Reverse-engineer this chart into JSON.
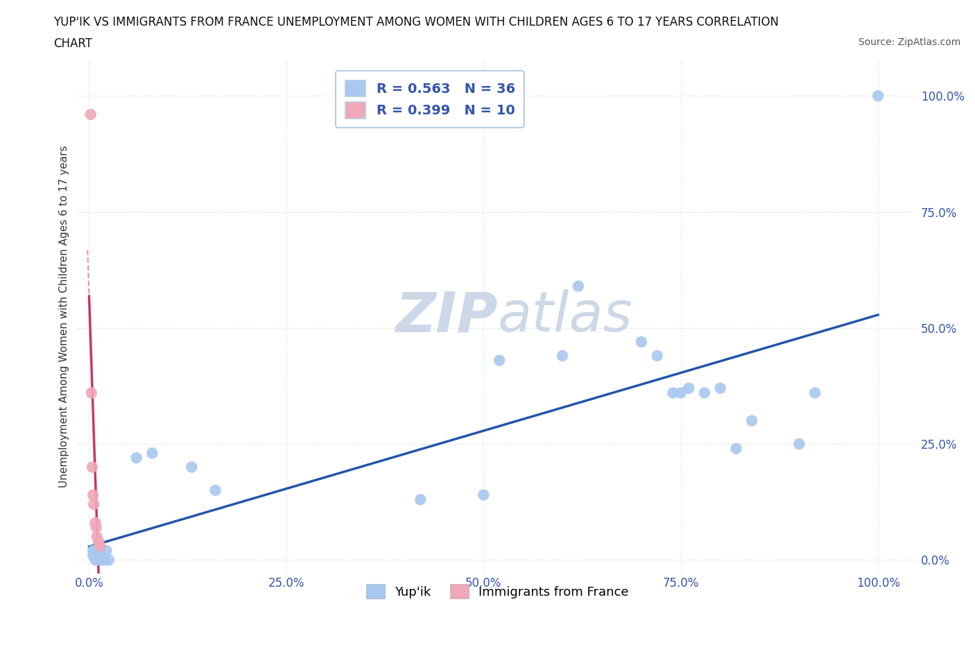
{
  "title_line1": "YUP'IK VS IMMIGRANTS FROM FRANCE UNEMPLOYMENT AMONG WOMEN WITH CHILDREN AGES 6 TO 17 YEARS CORRELATION",
  "title_line2": "CHART",
  "source": "Source: ZipAtlas.com",
  "xlabel_ticks": [
    "0.0%",
    "25.0%",
    "50.0%",
    "75.0%",
    "100.0%"
  ],
  "xlabel_tick_vals": [
    0,
    0.25,
    0.5,
    0.75,
    1.0
  ],
  "ylabel": "Unemployment Among Women with Children Ages 6 to 17 years",
  "ylabel_ticks": [
    "0.0%",
    "25.0%",
    "50.0%",
    "75.0%",
    "100.0%"
  ],
  "ylabel_tick_vals": [
    0,
    0.25,
    0.5,
    0.75,
    1.0
  ],
  "blue_legend_R": "R = 0.563",
  "blue_legend_N": "N = 36",
  "pink_legend_R": "R = 0.399",
  "pink_legend_N": "N = 10",
  "blue_color": "#a8c8f0",
  "pink_color": "#f0a8b8",
  "blue_line_color": "#2255aa",
  "pink_line_color": "#cc3366",
  "blue_scatter": [
    [
      0.005,
      0.02
    ],
    [
      0.005,
      0.01
    ],
    [
      0.007,
      0.02
    ],
    [
      0.008,
      0.0
    ],
    [
      0.008,
      0.01
    ],
    [
      0.01,
      0.0
    ],
    [
      0.01,
      0.01
    ],
    [
      0.012,
      0.0
    ],
    [
      0.012,
      0.02
    ],
    [
      0.015,
      0.0
    ],
    [
      0.015,
      0.01
    ],
    [
      0.018,
      0.0
    ],
    [
      0.02,
      0.0
    ],
    [
      0.022,
      0.02
    ],
    [
      0.025,
      0.0
    ],
    [
      0.06,
      0.22
    ],
    [
      0.08,
      0.23
    ],
    [
      0.13,
      0.2
    ],
    [
      0.16,
      0.15
    ],
    [
      0.42,
      0.13
    ],
    [
      0.5,
      0.14
    ],
    [
      0.52,
      0.43
    ],
    [
      0.6,
      0.44
    ],
    [
      0.62,
      0.59
    ],
    [
      0.7,
      0.47
    ],
    [
      0.72,
      0.44
    ],
    [
      0.74,
      0.36
    ],
    [
      0.75,
      0.36
    ],
    [
      0.76,
      0.37
    ],
    [
      0.78,
      0.36
    ],
    [
      0.8,
      0.37
    ],
    [
      0.82,
      0.24
    ],
    [
      0.84,
      0.3
    ],
    [
      0.9,
      0.25
    ],
    [
      0.92,
      0.36
    ],
    [
      1.0,
      1.0
    ]
  ],
  "pink_scatter": [
    [
      0.002,
      0.96
    ],
    [
      0.003,
      0.36
    ],
    [
      0.004,
      0.2
    ],
    [
      0.005,
      0.14
    ],
    [
      0.006,
      0.12
    ],
    [
      0.008,
      0.08
    ],
    [
      0.009,
      0.07
    ],
    [
      0.01,
      0.05
    ],
    [
      0.012,
      0.04
    ],
    [
      0.014,
      0.03
    ]
  ],
  "watermark_color": "#ccd8e8",
  "background_color": "#ffffff",
  "grid_color": "#e8e8e8",
  "grid_style_minor": "--",
  "legend_box_color": "#b8cce0",
  "legend_text_color": "#3355aa"
}
